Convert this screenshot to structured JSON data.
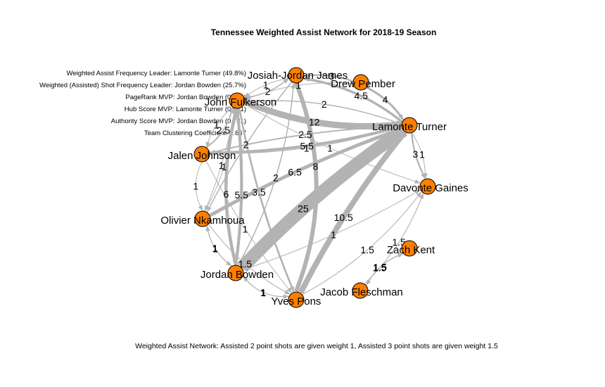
{
  "title": "Tennessee Weighted Assist Network for 2018-19 Season",
  "caption": "Weighted Assist Network: Assisted 2 point shots are given weight 1, Assisted 3 point shots are given weight 1.5",
  "stats": [
    "Weighted Assist Frequency Leader: Lamonte Turner (49.8%)",
    "Weighted (Assisted) Shot Frequency Leader: Jordan Bowden (25.7%)",
    "PageRank MVP: Jordan Bowden (0.201)",
    "Hub Score MVP: Lamonte Turner (0.961)",
    "Authority Score MVP: Jordan Bowden (0.781)",
    "Team Clustering Coefficient: 0.667"
  ],
  "colors": {
    "node": "#ff7f00",
    "edge": "#b3b3b3"
  },
  "nodes": [
    {
      "id": "JJ",
      "label": "Josiah-Jordan James"
    },
    {
      "id": "DP",
      "label": "Drew Pember"
    },
    {
      "id": "JF",
      "label": "John Fulkerson"
    },
    {
      "id": "LT",
      "label": "Lamonte Turner"
    },
    {
      "id": "JAJ",
      "label": "Jalen Johnson"
    },
    {
      "id": "DG",
      "label": "Davonte Gaines"
    },
    {
      "id": "ON",
      "label": "Olivier Nkamhoua"
    },
    {
      "id": "ZK",
      "label": "Zach Kent"
    },
    {
      "id": "JB",
      "label": "Jordan Bowden"
    },
    {
      "id": "JFL",
      "label": "Jacob Fleschman"
    },
    {
      "id": "YP",
      "label": "Yves Pons"
    }
  ],
  "edges": [
    {
      "from": "LT",
      "to": "JB",
      "weight": 25,
      "label": "25"
    },
    {
      "from": "LT",
      "to": "JF",
      "weight": 12,
      "label": "12"
    },
    {
      "from": "LT",
      "to": "YP",
      "weight": 10.5,
      "label": "10.5"
    },
    {
      "from": "JJ",
      "to": "YP",
      "weight": 8,
      "label": "8"
    },
    {
      "from": "LT",
      "to": "ON",
      "weight": 6.5,
      "label": "6.5"
    },
    {
      "from": "JF",
      "to": "JB",
      "weight": 6,
      "label": "6"
    },
    {
      "from": "JB",
      "to": "JF",
      "weight": 5.5,
      "label": "5.5"
    },
    {
      "from": "LT",
      "to": "JAJ",
      "weight": 5.5,
      "label": "5.5"
    },
    {
      "from": "LT",
      "to": "JJ",
      "weight": 4.5,
      "label": "4.5"
    },
    {
      "from": "DP",
      "to": "LT",
      "weight": 4,
      "label": "4"
    },
    {
      "from": "JF",
      "to": "YP",
      "weight": 3.5,
      "label": "3.5"
    },
    {
      "from": "DP",
      "to": "JJ",
      "weight": 3,
      "label": "3"
    },
    {
      "from": "LT",
      "to": "DG",
      "weight": 3,
      "label": "3"
    },
    {
      "from": "LT",
      "to": "JAJ",
      "weight": 2.5,
      "label": "2.5"
    },
    {
      "from": "JAJ",
      "to": "JF",
      "weight": 2.5,
      "label": "2.5"
    },
    {
      "from": "JF",
      "to": "JJ",
      "weight": 2,
      "label": "2"
    },
    {
      "from": "JF",
      "to": "LT",
      "weight": 2,
      "label": "2"
    },
    {
      "from": "JB",
      "to": "JJ",
      "weight": 2,
      "label": "2"
    },
    {
      "from": "JJ",
      "to": "ON",
      "weight": 2,
      "label": "2"
    },
    {
      "from": "JAJ",
      "to": "LT",
      "weight": 1,
      "label": "1"
    },
    {
      "from": "YP",
      "to": "DG",
      "weight": 1.5,
      "label": "1.5"
    },
    {
      "from": "JFL",
      "to": "DG",
      "weight": 1.5,
      "label": "1.5"
    },
    {
      "from": "JFL",
      "to": "ZK",
      "weight": 1.5,
      "label": "1.5"
    },
    {
      "from": "ZK",
      "to": "JFL",
      "weight": 1.5,
      "label": "1.5"
    },
    {
      "from": "ON",
      "to": "YP",
      "weight": 1.5,
      "label": "1.5"
    },
    {
      "from": "LT",
      "to": "DG",
      "weight": 1,
      "label": "1"
    },
    {
      "from": "JF",
      "to": "JAJ",
      "weight": 1,
      "label": "1"
    },
    {
      "from": "JAJ",
      "to": "ON",
      "weight": 1,
      "label": "1"
    },
    {
      "from": "JF",
      "to": "ON",
      "weight": 1,
      "label": "1"
    },
    {
      "from": "ON",
      "to": "JF",
      "weight": 1,
      "label": "1"
    },
    {
      "from": "ON",
      "to": "JB",
      "weight": 1,
      "label": "1"
    },
    {
      "from": "JB",
      "to": "ON",
      "weight": 1,
      "label": "1"
    },
    {
      "from": "JB",
      "to": "YP",
      "weight": 1,
      "label": "1"
    },
    {
      "from": "YP",
      "to": "JB",
      "weight": 1,
      "label": "1"
    },
    {
      "from": "JJ",
      "to": "JF",
      "weight": 1,
      "label": "1"
    },
    {
      "from": "DP",
      "to": "JF",
      "weight": 1,
      "label": "1"
    },
    {
      "from": "JF",
      "to": "DG",
      "weight": 1,
      "label": "1"
    },
    {
      "from": "JAJ",
      "to": "YP",
      "weight": 1,
      "label": "1"
    },
    {
      "from": "JB",
      "to": "DG",
      "weight": 1,
      "label": "1"
    }
  ]
}
